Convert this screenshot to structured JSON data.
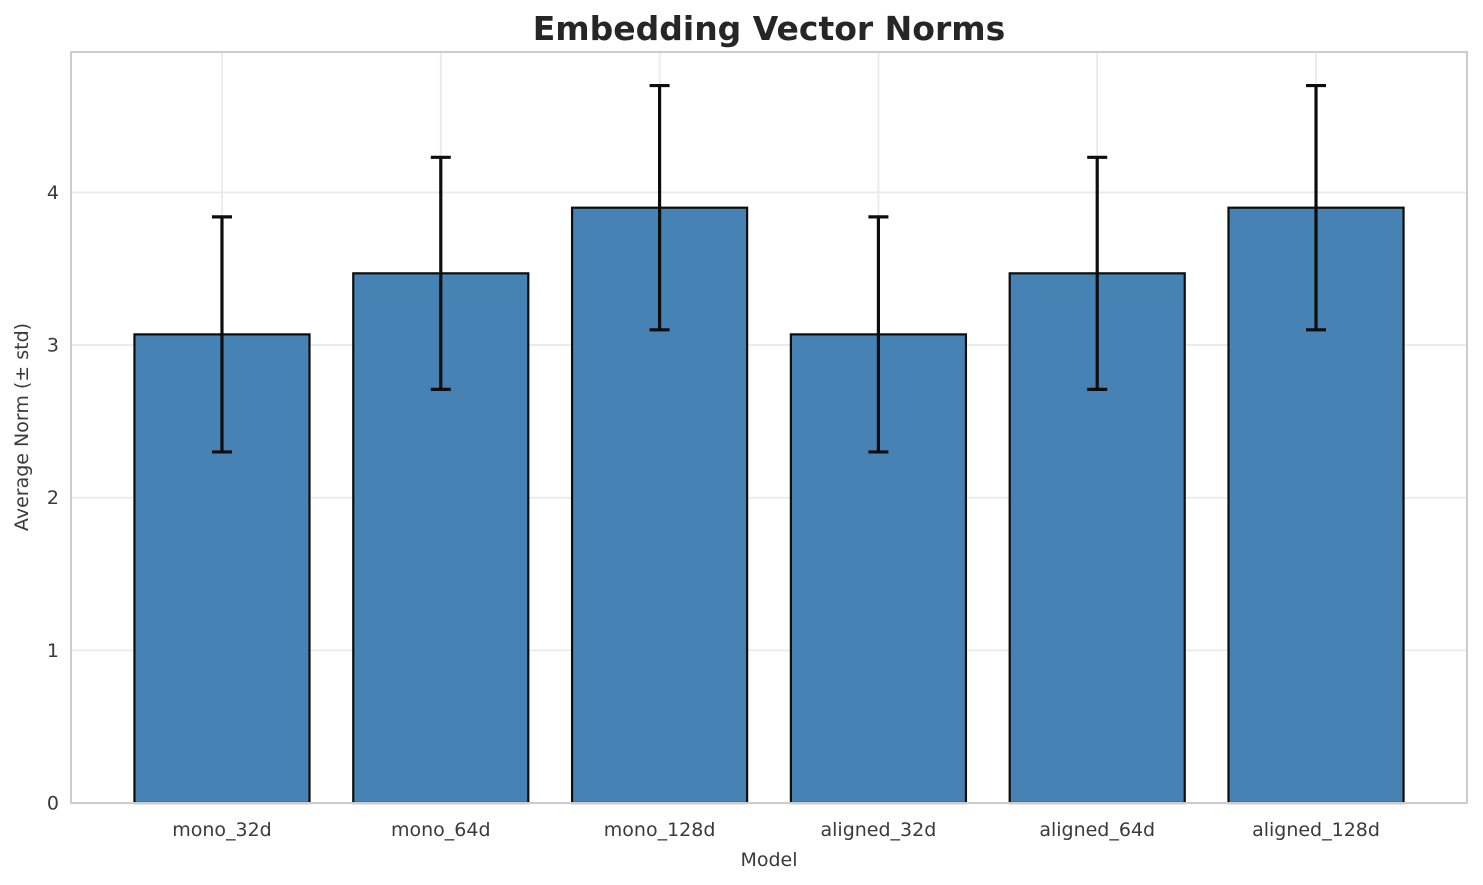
{
  "chart_data": {
    "type": "bar",
    "title": "Embedding Vector Norms",
    "xlabel": "Model",
    "ylabel": "Average Norm (± std)",
    "categories": [
      "mono_32d",
      "mono_64d",
      "mono_128d",
      "aligned_32d",
      "aligned_64d",
      "aligned_128d"
    ],
    "values": [
      3.07,
      3.47,
      3.9,
      3.07,
      3.47,
      3.9
    ],
    "errors": [
      0.77,
      0.76,
      0.8,
      0.77,
      0.76,
      0.8
    ],
    "yticks": [
      "0",
      "1",
      "2",
      "3",
      "4"
    ],
    "ytick_values": [
      0,
      1,
      2,
      3,
      4
    ],
    "ylim": [
      0,
      4.92
    ],
    "xlim": [
      -0.69,
      5.69
    ],
    "bar_width": 0.8,
    "grid": true,
    "legend_position": "none",
    "colors": {
      "bar_fill": "#4682B4",
      "bar_edge": "#0d0d0d",
      "error": "#0d0d0d",
      "grid": "#eaeaea",
      "spine": "#cccccc",
      "title": "#262626",
      "text": "#3a3a3a",
      "background": "#ffffff"
    }
  }
}
